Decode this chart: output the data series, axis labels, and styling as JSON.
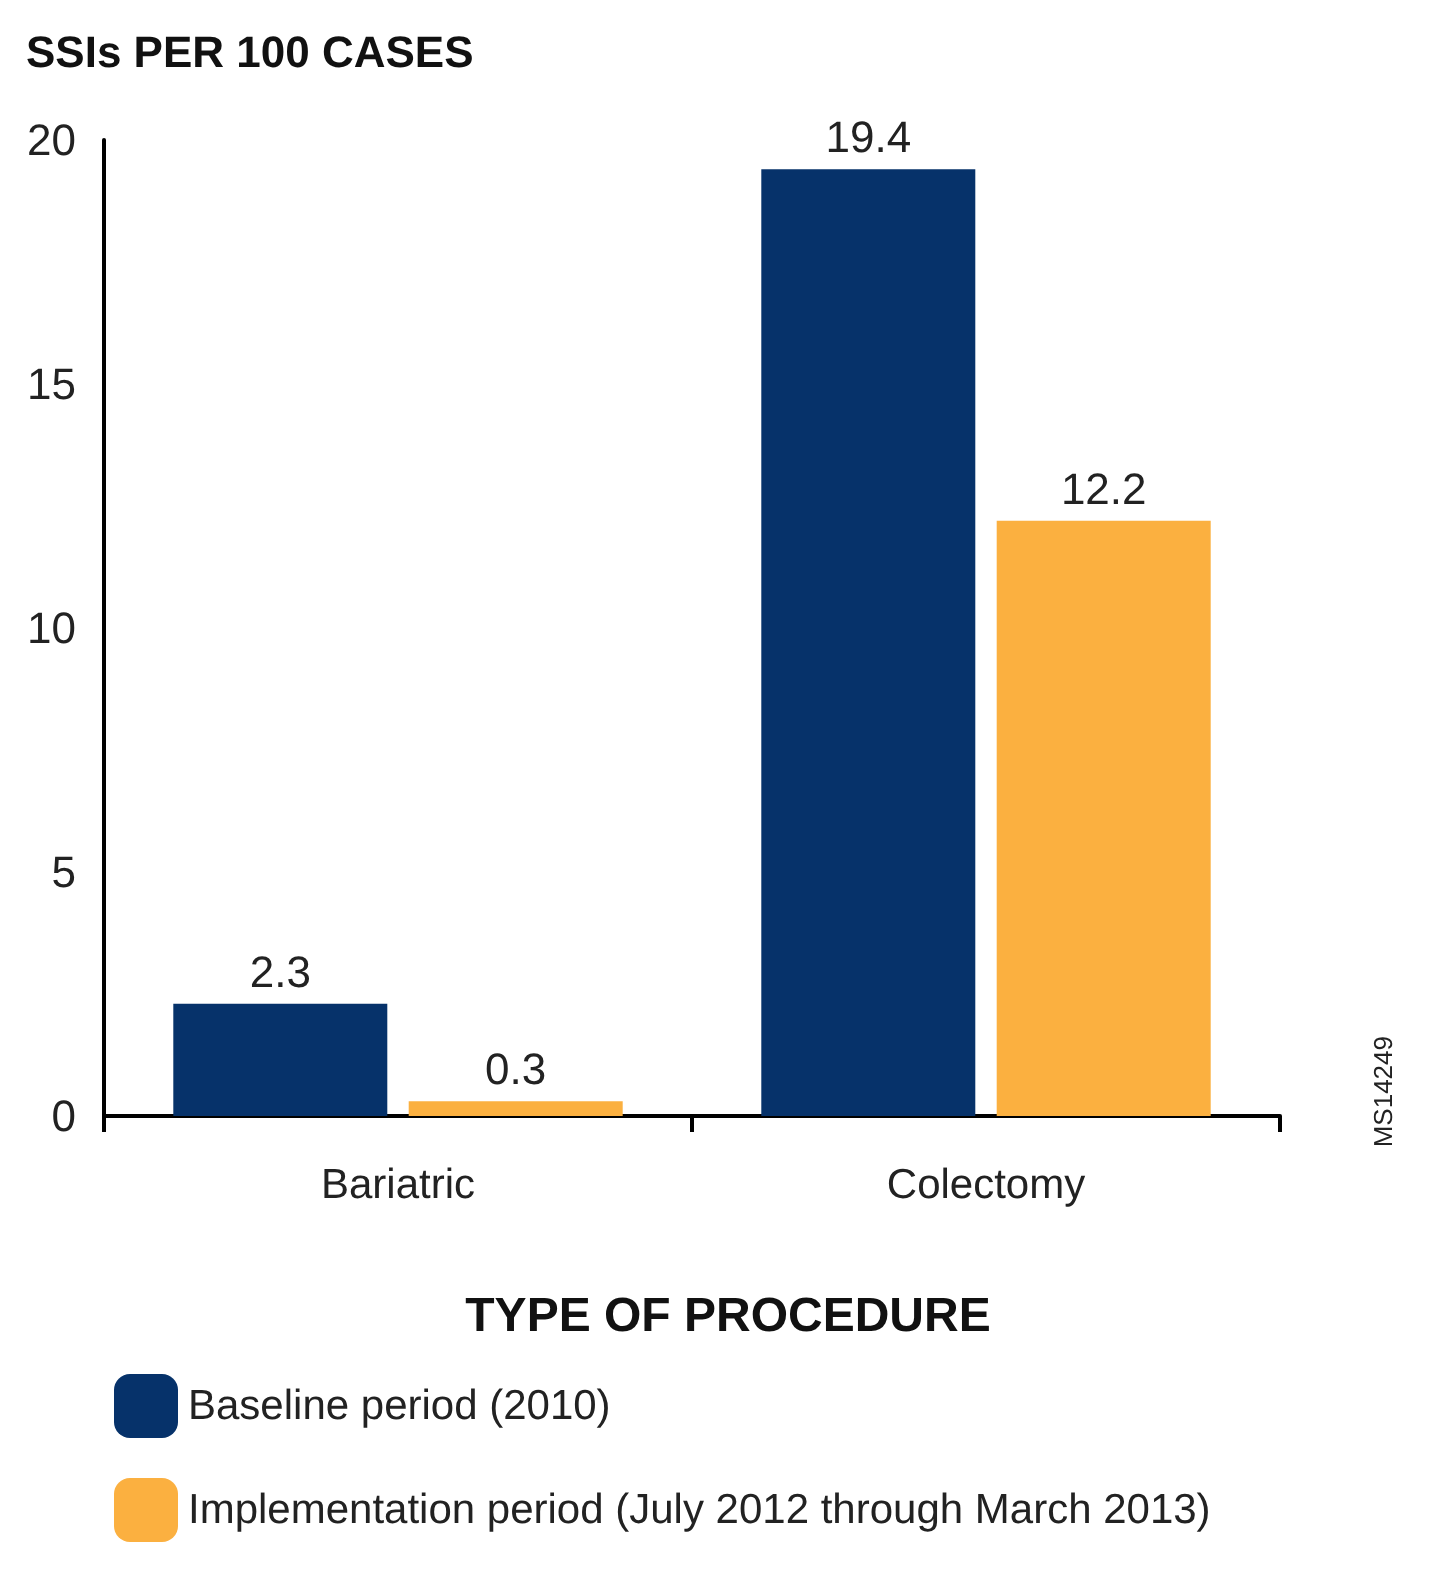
{
  "chart_data": {
    "type": "bar",
    "title": "SSIs PER 100 CASES",
    "xlabel": "TYPE OF PROCEDURE",
    "categories": [
      "Bariatric",
      "Colectomy"
    ],
    "series": [
      {
        "name": "Baseline period (2010)",
        "color": "#06326a",
        "values": [
          2.3,
          19.4
        ]
      },
      {
        "name": "Implementation period (July 2012 through March 2013)",
        "color": "#fbb040",
        "values": [
          0.3,
          12.2
        ]
      }
    ],
    "ylim": [
      0,
      20
    ],
    "yticks": [
      0,
      5,
      10,
      15,
      20
    ],
    "grid": false,
    "legend": "bottom",
    "data_labels": true,
    "annotations": [
      "MS14249"
    ]
  }
}
